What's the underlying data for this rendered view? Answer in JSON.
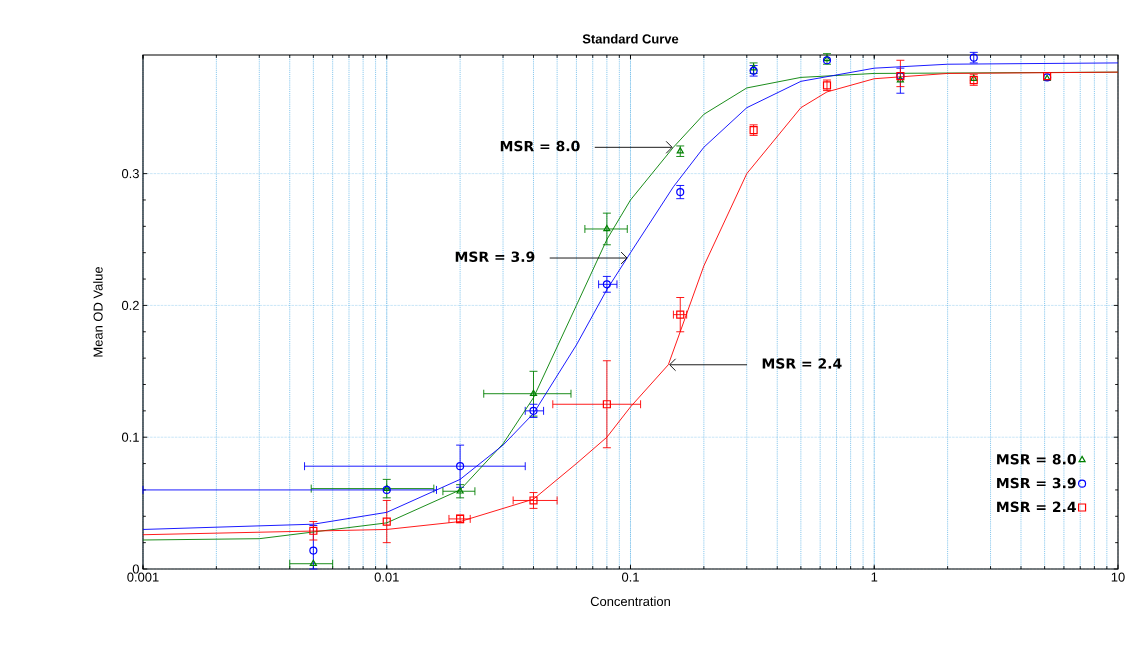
{
  "chart_data": {
    "type": "scatter",
    "title": "Standard Curve",
    "xlabel": "Concentration",
    "ylabel": "Mean OD Value",
    "log": "x",
    "grid": true,
    "legend": "bottom right",
    "xlim": [
      0.001,
      10
    ],
    "ylim": [
      0,
      0.39
    ],
    "xticks": [
      0.001,
      0.01,
      0.1,
      1,
      10
    ],
    "yticks": [
      0,
      0.1,
      0.2,
      0.3
    ],
    "series": [
      {
        "name": "MSR = 8.0",
        "marker": "triangle",
        "color": "#008000",
        "x": [
          0.005,
          0.01,
          0.02,
          0.04,
          0.08,
          0.16,
          0.32,
          0.64,
          1.28,
          2.56,
          5.12
        ],
        "values": [
          0.004,
          0.061,
          0.059,
          0.133,
          0.258,
          0.317,
          0.38,
          0.387,
          0.371,
          0.372,
          0.372
        ],
        "errors": [
          null,
          0.007,
          0.005,
          0.017,
          0.012,
          0.004,
          0.004,
          0.004,
          null,
          null,
          null
        ],
        "xerrors": [
          [
            0.004,
            0.006
          ],
          [
            0.0049,
            0.0156
          ],
          [
            0.017,
            0.023
          ],
          [
            0.025,
            0.057
          ],
          [
            0.065,
            0.097
          ],
          null,
          null,
          null,
          null,
          null,
          null
        ]
      },
      {
        "name": "MSR = 3.9",
        "marker": "circle",
        "color": "#0000ff",
        "x": [
          0.005,
          0.01,
          0.02,
          0.04,
          0.08,
          0.16,
          0.32,
          0.64,
          1.28,
          2.56,
          5.12
        ],
        "values": [
          0.014,
          0.06,
          0.078,
          0.12,
          0.216,
          0.286,
          0.378,
          0.386,
          0.374,
          0.388,
          0.373
        ],
        "errors": [
          [
            0,
            0.033
          ],
          null,
          0.016,
          0.005,
          0.006,
          0.005,
          0.004,
          null,
          [
            0.361,
            0.38
          ],
          0.004,
          null
        ],
        "xerrors": [
          null,
          [
            0.001,
            0.016
          ],
          [
            0.0046,
            0.037
          ],
          [
            0.037,
            0.044
          ],
          [
            0.074,
            0.088
          ],
          null,
          null,
          null,
          null,
          null,
          null
        ]
      },
      {
        "name": "MSR = 2.4",
        "marker": "square",
        "color": "#ff0000",
        "x": [
          0.005,
          0.01,
          0.02,
          0.04,
          0.08,
          0.16,
          0.32,
          0.64,
          1.28,
          2.56,
          5.12
        ],
        "values": [
          0.029,
          0.036,
          0.038,
          0.052,
          0.125,
          0.193,
          0.333,
          0.367,
          0.374,
          0.371,
          0.374
        ],
        "errors": [
          0.007,
          0.016,
          0.003,
          0.006,
          0.033,
          0.013,
          0.004,
          0.004,
          [
            0.366,
            0.386
          ],
          0.004,
          null
        ],
        "xerrors": [
          null,
          null,
          [
            0.018,
            0.022
          ],
          [
            0.033,
            0.05
          ],
          [
            0.048,
            0.11
          ],
          [
            0.15,
            0.17
          ],
          null,
          null,
          null,
          null,
          null
        ]
      },
      {
        "type": "line",
        "color": "#008000",
        "x": [
          0.001,
          0.003,
          0.01,
          0.02,
          0.03,
          0.04,
          0.06,
          0.08,
          0.1,
          0.15,
          0.2,
          0.3,
          0.5,
          1,
          10
        ],
        "values": [
          0.022,
          0.023,
          0.035,
          0.06,
          0.095,
          0.13,
          0.2,
          0.25,
          0.28,
          0.32,
          0.345,
          0.365,
          0.373,
          0.376,
          0.377
        ]
      },
      {
        "type": "line",
        "color": "#0000ff",
        "x": [
          0.001,
          0.005,
          0.01,
          0.02,
          0.03,
          0.04,
          0.06,
          0.08,
          0.1,
          0.15,
          0.2,
          0.3,
          0.5,
          1,
          2,
          10
        ],
        "values": [
          0.03,
          0.034,
          0.043,
          0.068,
          0.094,
          0.118,
          0.17,
          0.212,
          0.24,
          0.29,
          0.32,
          0.35,
          0.37,
          0.38,
          0.383,
          0.384
        ]
      },
      {
        "type": "line",
        "color": "#ff0000",
        "x": [
          0.001,
          0.01,
          0.02,
          0.04,
          0.06,
          0.08,
          0.1,
          0.143,
          0.2,
          0.3,
          0.5,
          0.64,
          1,
          2,
          10
        ],
        "values": [
          0.026,
          0.03,
          0.036,
          0.053,
          0.08,
          0.1,
          0.123,
          0.155,
          0.23,
          0.3,
          0.35,
          0.362,
          0.372,
          0.376,
          0.377
        ]
      }
    ],
    "annotations": [
      {
        "text": "MSR = 8.0",
        "x": 0.15,
        "y": 0.32
      },
      {
        "text": "MSR = 3.9",
        "x": 0.098,
        "y": 0.236
      },
      {
        "text": "MSR = 2.4",
        "x": 0.143,
        "y": 0.155
      }
    ]
  }
}
